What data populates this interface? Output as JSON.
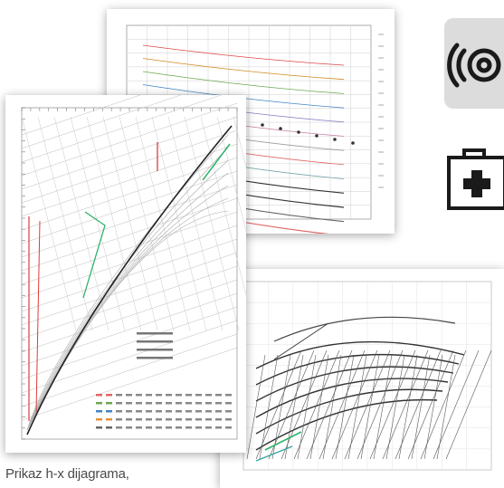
{
  "caption": "Prikaz h-x dijagrama,",
  "icons": [
    "signal-disc-icon",
    "first-aid-kit-icon"
  ],
  "colors": {
    "grid": "#cfcfcf",
    "curve_dark": "#333333",
    "accent_red": "#e03b3b",
    "accent_green": "#2fb36b",
    "accent_teal": "#3aa6a0",
    "icon_tile": "#dcdcdc"
  }
}
